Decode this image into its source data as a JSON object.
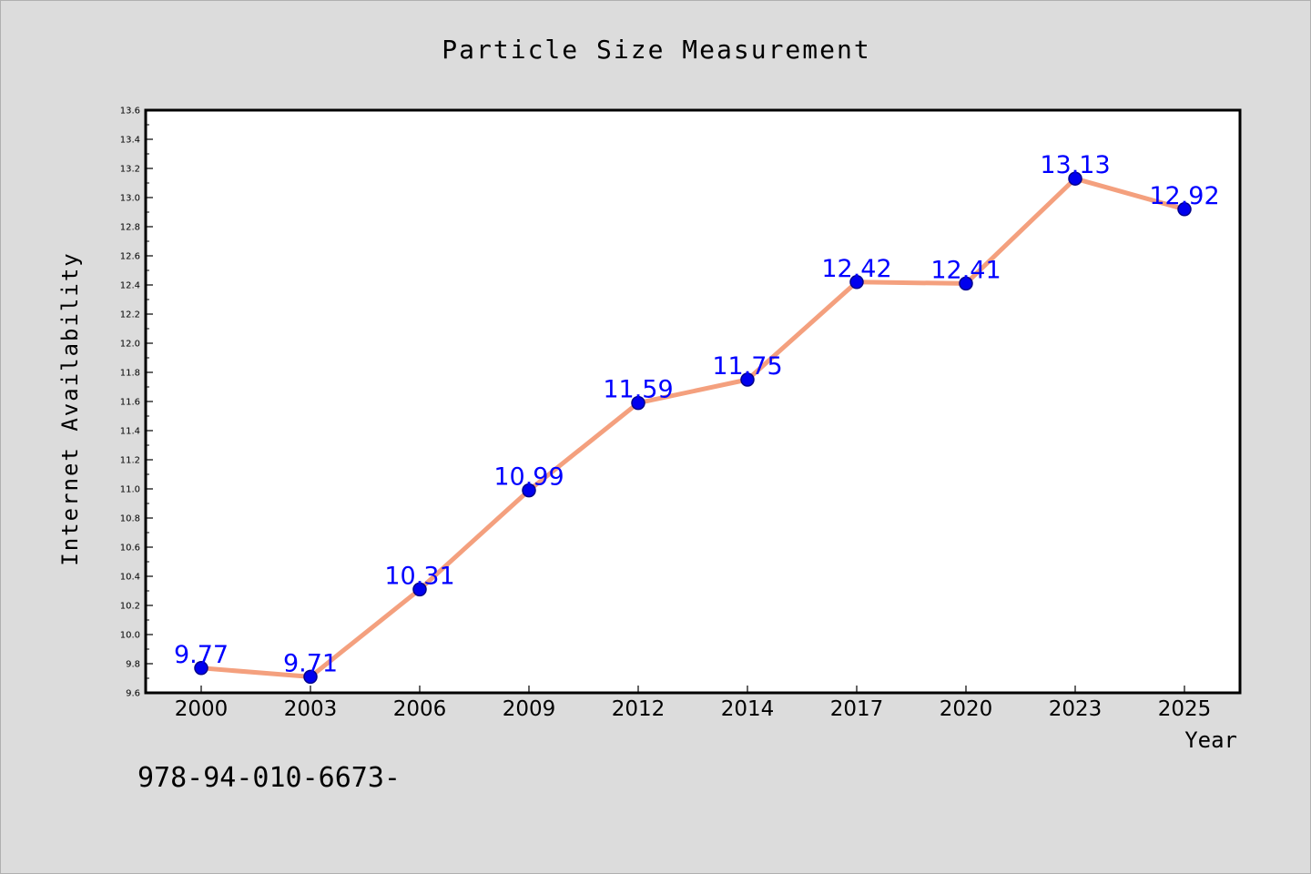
{
  "chart_data": {
    "type": "line",
    "title": "Particle Size Measurement",
    "xlabel": "Year",
    "ylabel": "Internet Availability",
    "categories": [
      "2000",
      "2003",
      "2006",
      "2009",
      "2012",
      "2014",
      "2017",
      "2020",
      "2023",
      "2025"
    ],
    "series": [
      {
        "values": [
          9.77,
          9.71,
          10.31,
          10.99,
          11.59,
          11.75,
          12.42,
          12.41,
          13.13,
          12.92
        ]
      }
    ],
    "data_labels": [
      "9.77",
      "9.71",
      "10.31",
      "10.99",
      "11.59",
      "11.75",
      "12.42",
      "12.41",
      "13.13",
      "12.92"
    ],
    "ylim": [
      9.6,
      13.6
    ],
    "y_major_step": 0.2,
    "yticks": [
      "9.6",
      "9.8",
      "10.0",
      "10.2",
      "10.4",
      "10.6",
      "10.8",
      "11.0",
      "11.2",
      "11.4",
      "11.6",
      "11.8",
      "12.0",
      "12.2",
      "12.4",
      "12.6",
      "12.8",
      "13.0",
      "13.2",
      "13.4",
      "13.6"
    ],
    "grid": false,
    "legend": false,
    "colors": {
      "line": "#f4a07e",
      "marker": "#0000ee",
      "marker_edge": "#00008b",
      "data_label": "#0000ff",
      "background": "#dcdcdc",
      "plot_background": "#ffffff"
    }
  },
  "footnote": "978-94-010-6673-"
}
